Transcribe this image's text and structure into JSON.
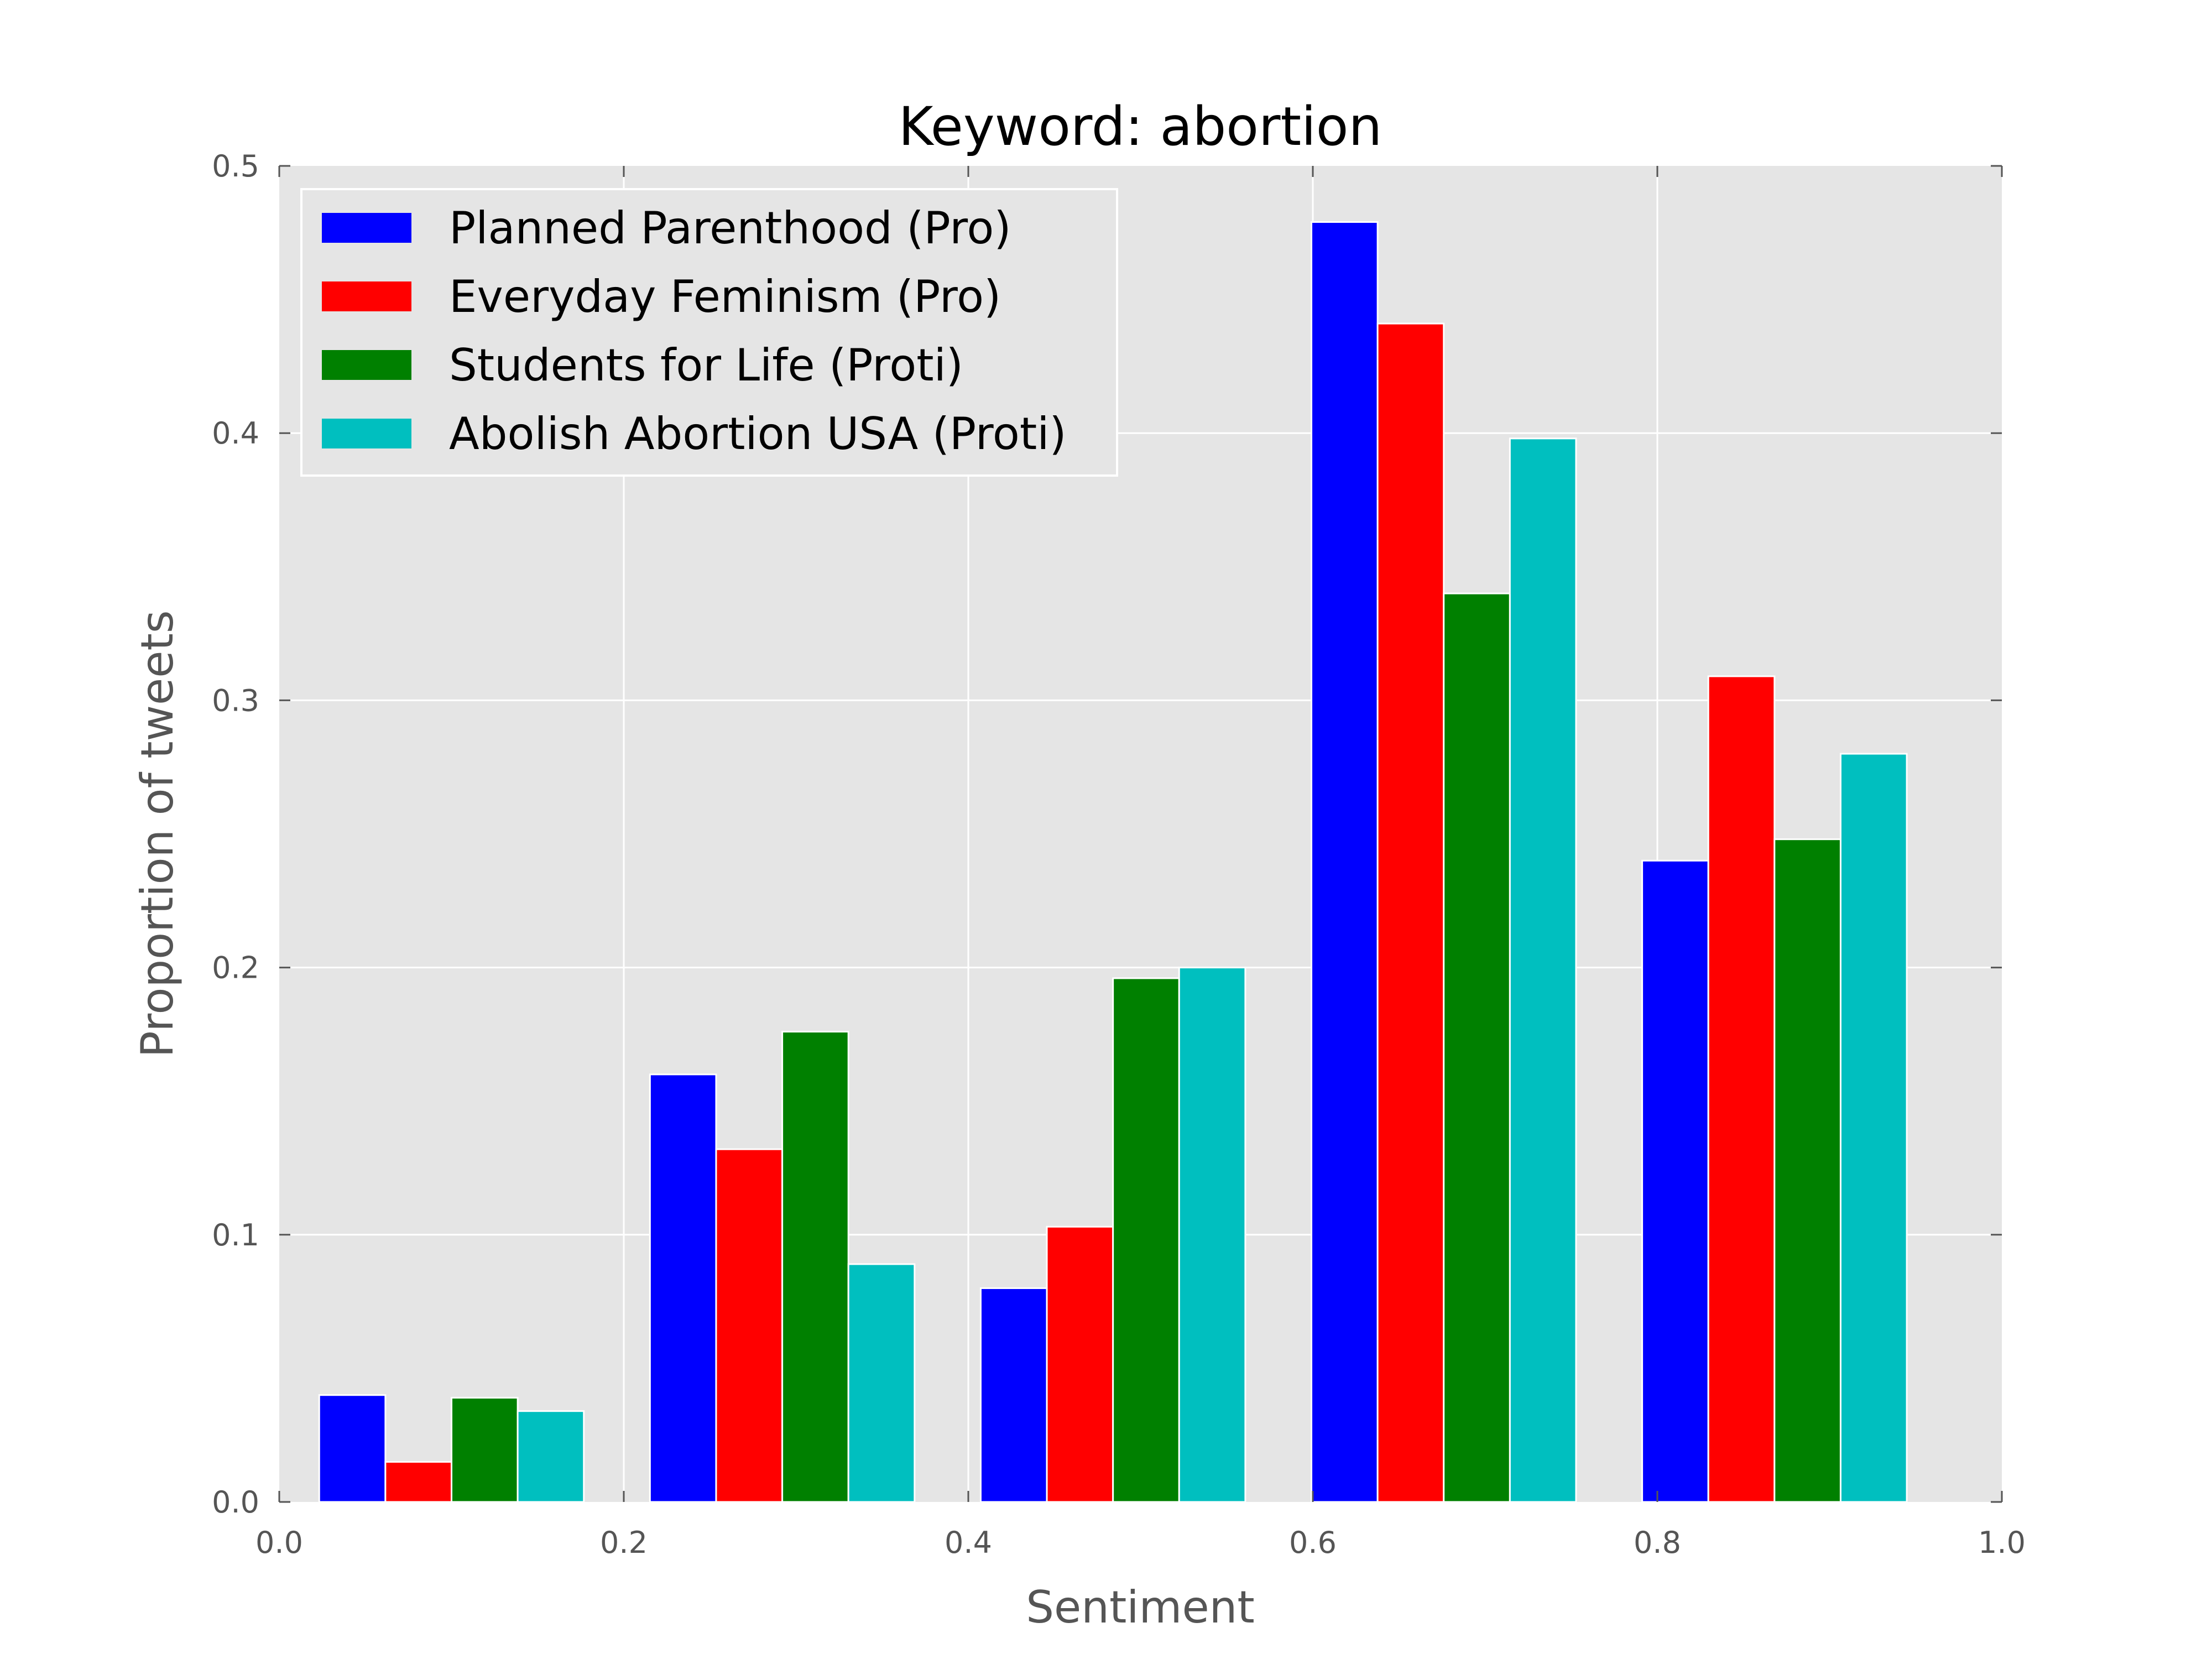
{
  "chart_data": {
    "type": "bar",
    "title": "Keyword: abortion",
    "xlabel": "Sentiment",
    "ylabel": "Proportion of tweets",
    "xlim": [
      0.0,
      1.0
    ],
    "ylim": [
      0.0,
      0.5
    ],
    "xticks": [
      "0.0",
      "0.2",
      "0.4",
      "0.6",
      "0.8",
      "1.0"
    ],
    "yticks": [
      "0.0",
      "0.1",
      "0.2",
      "0.3",
      "0.4",
      "0.5"
    ],
    "grid": true,
    "legend_position": "top-left",
    "bin_centers": [
      0.1,
      0.292,
      0.484,
      0.676,
      0.868
    ],
    "series": [
      {
        "name": "Planned Parenthood (Pro)",
        "color": "#0000ff",
        "values": [
          0.04,
          0.16,
          0.08,
          0.479,
          0.24
        ]
      },
      {
        "name": "Everyday Feminism (Pro)",
        "color": "#ff0000",
        "values": [
          0.015,
          0.132,
          0.103,
          0.441,
          0.309
        ]
      },
      {
        "name": "Students for Life (Proti)",
        "color": "#008000",
        "values": [
          0.039,
          0.176,
          0.196,
          0.34,
          0.248
        ]
      },
      {
        "name": "Abolish Abortion USA (Proti)",
        "color": "#00bfbf",
        "values": [
          0.034,
          0.089,
          0.2,
          0.398,
          0.28
        ]
      }
    ]
  }
}
